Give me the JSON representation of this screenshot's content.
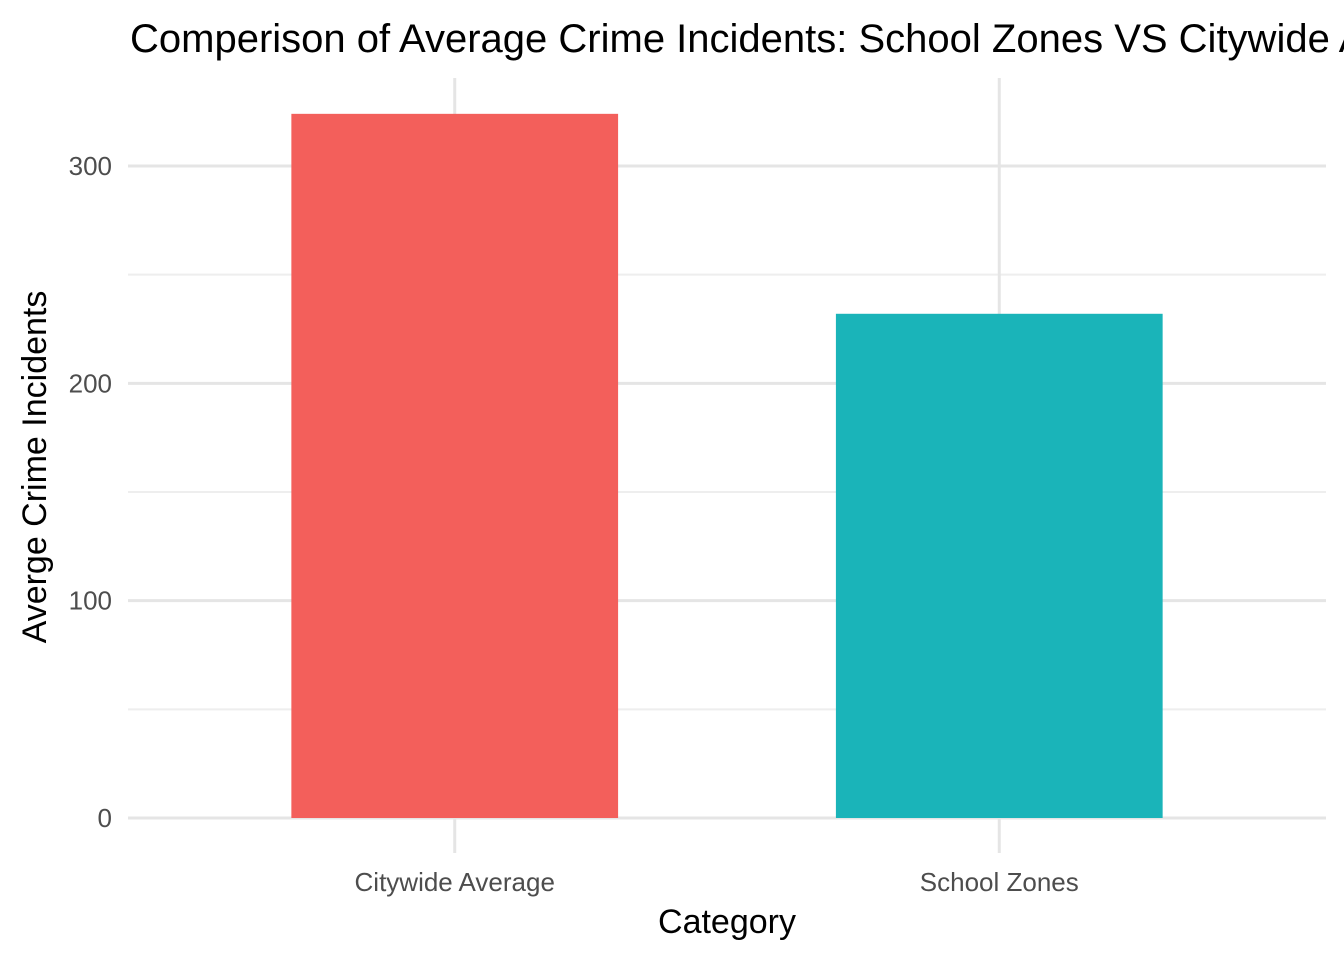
{
  "chart_data": {
    "type": "bar",
    "title": "Comperison of Average Crime Incidents: School Zones VS Citywide Average",
    "xlabel": "Category",
    "ylabel": "Averge Crime Incidents",
    "categories": [
      "Citywide Average",
      "School Zones"
    ],
    "values": [
      324,
      232
    ],
    "colors": [
      "#F35F5B",
      "#1AB4B9"
    ],
    "ylim": [
      -17,
      340
    ],
    "yticks": [
      0,
      100,
      200,
      300
    ],
    "grid": true,
    "legend": "none"
  }
}
